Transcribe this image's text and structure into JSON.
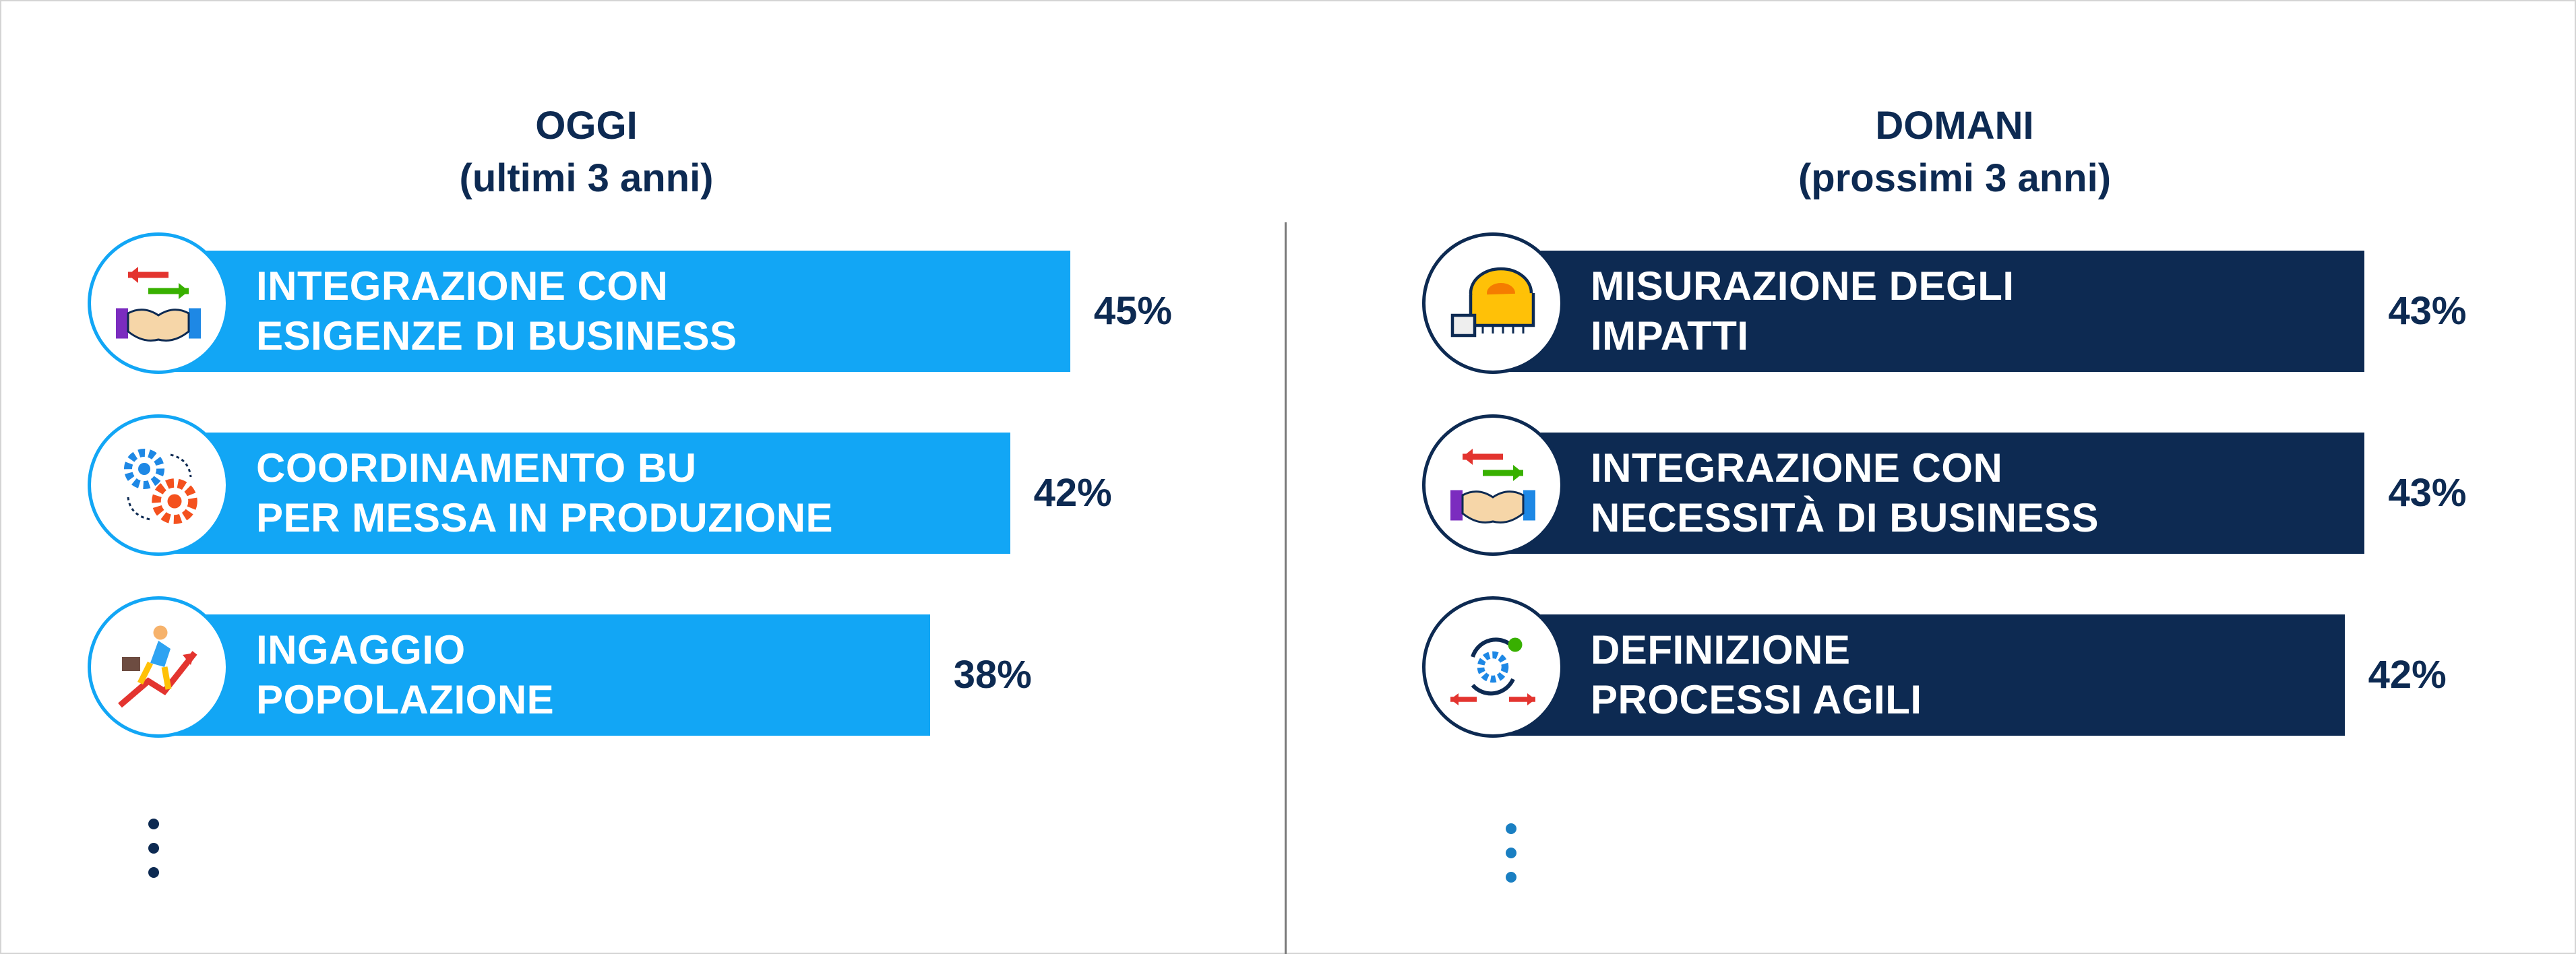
{
  "chart_data": [
    {
      "type": "bar",
      "orientation": "horizontal",
      "title": "OGGI",
      "subtitle": "(ultimi 3 anni)",
      "bar_color": "#12a6f5",
      "bars": [
        {
          "label_lines": [
            "INTEGRAZIONE CON",
            "ESIGENZE DI BUSINESS"
          ],
          "value": 45,
          "value_label": "45%",
          "icon": "handshake-arrows-icon"
        },
        {
          "label_lines": [
            "COORDINAMENTO BU",
            "PER MESSA IN PRODUZIONE"
          ],
          "value": 42,
          "value_label": "42%",
          "icon": "gears-icon"
        },
        {
          "label_lines": [
            "INGAGGIO",
            "POPOLAZIONE"
          ],
          "value": 38,
          "value_label": "38%",
          "icon": "growth-runner-icon"
        }
      ]
    },
    {
      "type": "bar",
      "orientation": "horizontal",
      "title": "DOMANI",
      "subtitle": "(prossimi 3 anni)",
      "bar_color": "#0d2a52",
      "bars": [
        {
          "label_lines": [
            "MISURAZIONE DEGLI",
            "IMPATTI"
          ],
          "value": 43,
          "value_label": "43%",
          "icon": "measuring-tape-icon"
        },
        {
          "label_lines": [
            "INTEGRAZIONE CON",
            "NECESSITÀ DI BUSINESS"
          ],
          "value": 43,
          "value_label": "43%",
          "icon": "handshake-arrows-icon"
        },
        {
          "label_lines": [
            "DEFINIZIONE",
            "PROCESSI AGILI"
          ],
          "value": 42,
          "value_label": "42%",
          "icon": "agile-cycle-icon"
        }
      ]
    }
  ],
  "colors": {
    "title": "#0d2a52",
    "left_bar": "#12a6f5",
    "right_bar": "#0d2a52",
    "left_dots": "#0d2a52",
    "right_dots": "#1a7fc2"
  }
}
